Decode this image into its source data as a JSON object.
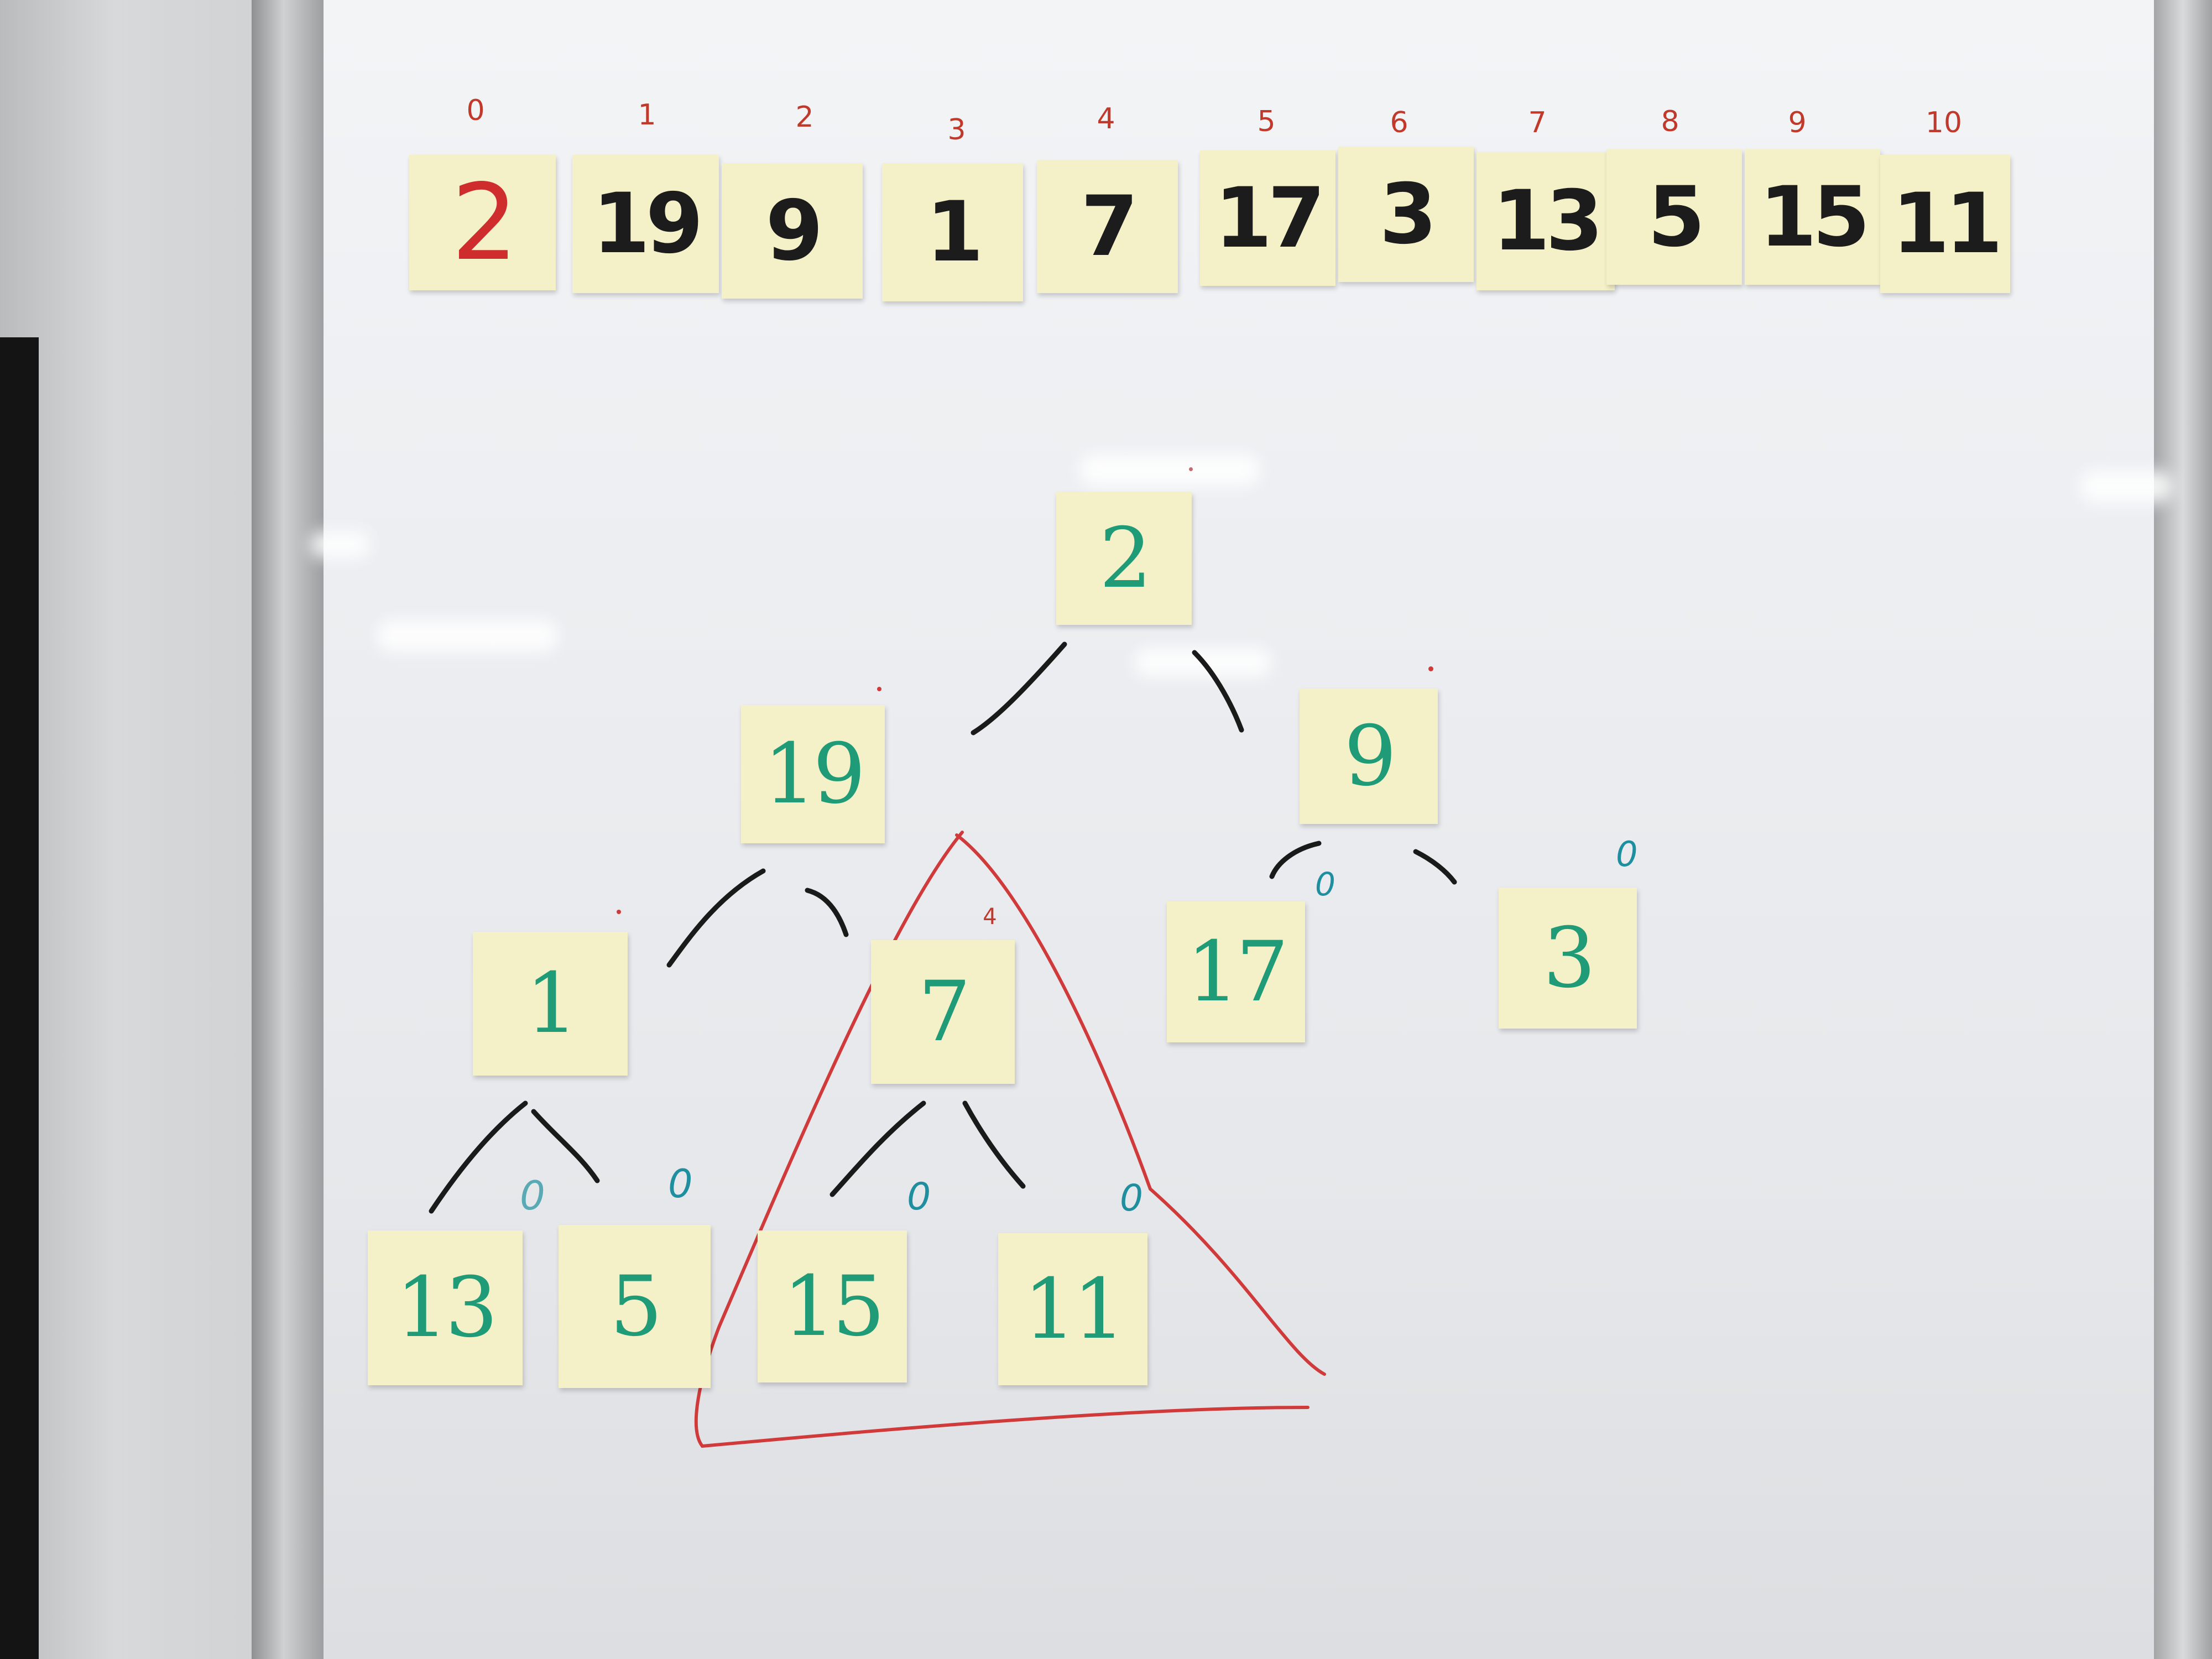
{
  "array": {
    "indices": [
      "0",
      "1",
      "2",
      "3",
      "4",
      "5",
      "6",
      "7",
      "8",
      "9",
      "10"
    ],
    "values": [
      "2",
      "19",
      "9",
      "1",
      "7",
      "17",
      "3",
      "13",
      "5",
      "15",
      "11"
    ]
  },
  "tree": {
    "root": "2",
    "level1": [
      "19",
      "9"
    ],
    "level2": [
      "1",
      "7",
      "17",
      "3"
    ],
    "level3": [
      "13",
      "5",
      "15",
      "11"
    ],
    "node_index_label": "4",
    "leaf_marker": "0"
  },
  "colors": {
    "array_ink": "#1c1c1c",
    "highlight_ink": "#cf2d2d",
    "tree_ink": "#1f9b78",
    "marker_ink": "#1f8fa0",
    "index_ink": "#c0392b",
    "sticky_note": "#f4f1c9"
  }
}
